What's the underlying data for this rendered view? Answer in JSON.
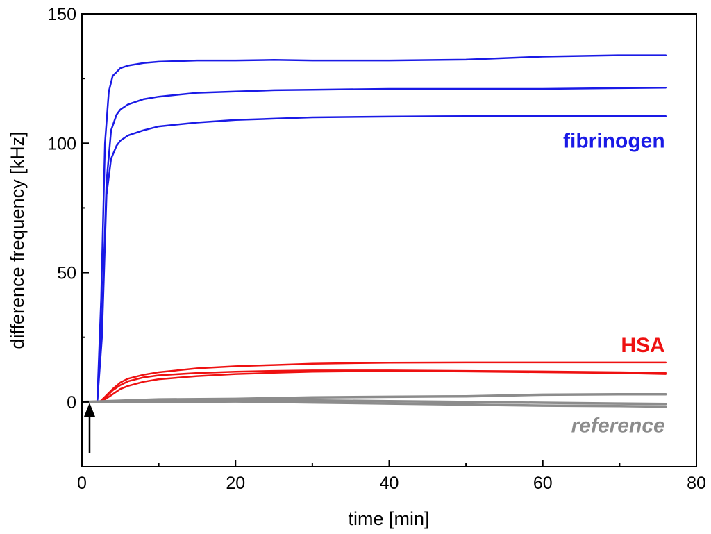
{
  "chart_data": {
    "type": "line",
    "title": "",
    "xlabel": "time [min]",
    "ylabel": "difference frequency [kHz]",
    "xlim": [
      0,
      80
    ],
    "ylim": [
      -25,
      150
    ],
    "xticks": [
      0,
      20,
      40,
      60,
      80
    ],
    "yticks": [
      0,
      50,
      100,
      150
    ],
    "x_tick_labels": [
      "0",
      "20",
      "40",
      "60",
      "80"
    ],
    "y_tick_labels": [
      "0",
      "50",
      "100",
      "150"
    ],
    "grid": false,
    "injection_marker_x": 1,
    "colors": {
      "fibrinogen": "#1a1ae6",
      "HSA": "#ee1111",
      "reference": "#8c8c8c"
    },
    "series": [
      {
        "name": "fibrinogen",
        "group": "fibrinogen",
        "color": "#1a1ae6",
        "x": [
          0,
          2,
          2.5,
          3,
          3.5,
          4,
          5,
          6,
          8,
          10,
          15,
          20,
          25,
          30,
          40,
          50,
          60,
          70,
          76
        ],
        "y": [
          0,
          0,
          40,
          100,
          120,
          126,
          129,
          130,
          131,
          131.5,
          132,
          132,
          132.2,
          132,
          132,
          132.3,
          133.5,
          134,
          134
        ]
      },
      {
        "name": "fibrinogen",
        "group": "fibrinogen",
        "color": "#1a1ae6",
        "x": [
          0,
          2,
          2.6,
          3.2,
          3.8,
          4.5,
          5,
          6,
          8,
          10,
          15,
          20,
          25,
          30,
          40,
          50,
          60,
          70,
          76
        ],
        "y": [
          0,
          0,
          30,
          85,
          105,
          111,
          113,
          115,
          117,
          118,
          119.5,
          120,
          120.5,
          120.7,
          121,
          121,
          121,
          121.3,
          121.5
        ]
      },
      {
        "name": "fibrinogen",
        "group": "fibrinogen",
        "color": "#1a1ae6",
        "x": [
          0,
          2,
          2.6,
          3.2,
          3.8,
          4.5,
          5,
          6,
          8,
          10,
          15,
          20,
          25,
          30,
          40,
          50,
          60,
          70,
          76
        ],
        "y": [
          0,
          0,
          25,
          80,
          94,
          99,
          101,
          103,
          105,
          106.5,
          108,
          109,
          109.5,
          110,
          110.3,
          110.5,
          110.5,
          110.5,
          110.5
        ]
      },
      {
        "name": "HSA",
        "group": "HSA",
        "color": "#ee1111",
        "x": [
          0,
          2.3,
          3,
          4,
          5,
          6,
          8,
          10,
          15,
          20,
          25,
          30,
          40,
          50,
          60,
          70,
          76
        ],
        "y": [
          0,
          0,
          2,
          5,
          7.5,
          9,
          10.5,
          11.5,
          13,
          13.8,
          14.3,
          14.8,
          15.2,
          15.3,
          15.3,
          15.3,
          15.3
        ]
      },
      {
        "name": "HSA",
        "group": "HSA",
        "color": "#ee1111",
        "x": [
          0,
          2.3,
          3,
          4,
          5,
          6,
          8,
          10,
          15,
          20,
          25,
          30,
          40,
          50,
          60,
          70,
          76
        ],
        "y": [
          0,
          0,
          1.5,
          4.5,
          6.5,
          8,
          9.5,
          10.3,
          11.2,
          11.7,
          12,
          12.2,
          12.2,
          12,
          11.8,
          11.5,
          11.2
        ]
      },
      {
        "name": "HSA",
        "group": "HSA",
        "color": "#ee1111",
        "x": [
          0,
          2.3,
          3,
          4,
          5,
          6,
          8,
          10,
          15,
          20,
          25,
          30,
          40,
          50,
          60,
          70,
          76
        ],
        "y": [
          0,
          0,
          1,
          3,
          5,
          6.2,
          7.8,
          8.8,
          10,
          10.8,
          11.3,
          11.7,
          12,
          11.8,
          11.5,
          11.2,
          10.8
        ]
      },
      {
        "name": "reference",
        "group": "reference",
        "color": "#8c8c8c",
        "x": [
          0,
          5,
          10,
          20,
          30,
          40,
          50,
          60,
          70,
          76
        ],
        "y": [
          0,
          0.5,
          1,
          1.2,
          1.8,
          2,
          2.2,
          2.8,
          3,
          3
        ]
      },
      {
        "name": "reference",
        "group": "reference",
        "color": "#8c8c8c",
        "x": [
          0,
          5,
          10,
          20,
          30,
          40,
          50,
          60,
          70,
          76
        ],
        "y": [
          0,
          0.3,
          0.5,
          0.8,
          0.6,
          0.3,
          0,
          -0.3,
          -0.6,
          -0.8
        ]
      },
      {
        "name": "reference",
        "group": "reference",
        "color": "#8c8c8c",
        "x": [
          0,
          5,
          10,
          20,
          30,
          40,
          50,
          60,
          70,
          76
        ],
        "y": [
          0,
          0,
          0,
          0.2,
          -0.2,
          -0.6,
          -1,
          -1.4,
          -1.6,
          -1.8
        ]
      }
    ],
    "annotations": [
      {
        "text": "fibrinogen",
        "x": 75,
        "y": 101,
        "color": "#1a1ae6",
        "style": "bold"
      },
      {
        "text": "HSA",
        "x": 75,
        "y": 22,
        "color": "#ee1111",
        "style": "bold"
      },
      {
        "text": "reference",
        "x": 75,
        "y": -9,
        "color": "#8c8c8c",
        "style": "bold italic"
      }
    ]
  }
}
